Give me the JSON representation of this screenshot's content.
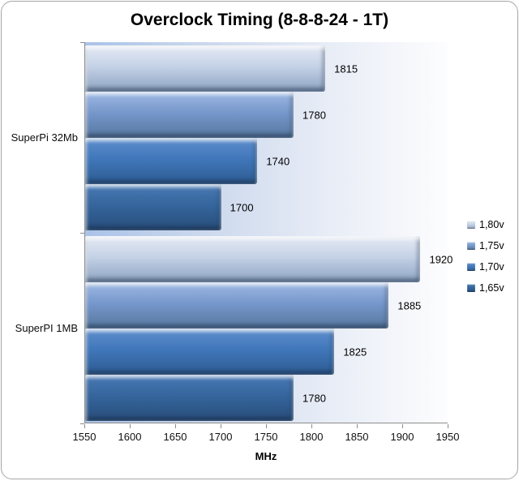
{
  "title": "Overclock Timing (8-8-8-24 - 1T)",
  "chart_data": {
    "type": "bar",
    "orientation": "horizontal",
    "title": "Overclock Timing (8-8-8-24 - 1T)",
    "categories": [
      "SuperPi 32Mb",
      "SuperPI 1MB"
    ],
    "series": [
      {
        "name": "1,80v",
        "values": [
          1815,
          1920
        ],
        "colors": [
          "#e6ebf4",
          "#c4d1e6",
          "#8da3c1"
        ]
      },
      {
        "name": "1,75v",
        "values": [
          1780,
          1885
        ],
        "colors": [
          "#9fb9e4",
          "#7697cb",
          "#56779e"
        ]
      },
      {
        "name": "1,70v",
        "values": [
          1740,
          1825
        ],
        "colors": [
          "#5e8ecd",
          "#4077ba",
          "#2d5b90"
        ]
      },
      {
        "name": "1,65v",
        "values": [
          1700,
          1780
        ],
        "colors": [
          "#4a79b5",
          "#35659c",
          "#284d7a"
        ]
      }
    ],
    "xlabel": "MHz",
    "xlim": [
      1550,
      1950
    ],
    "xticks": [
      1550,
      1600,
      1650,
      1700,
      1750,
      1800,
      1850,
      1900,
      1950
    ],
    "grid": false,
    "legend_position": "right",
    "data_labels": true
  },
  "colors": {
    "plot_bg_left": "#a9c3e8",
    "plot_bg_right": "#fdfdfe",
    "axis_line": "#8c8c8c",
    "text": "#000000",
    "frame_border": "#a6a6a6"
  }
}
